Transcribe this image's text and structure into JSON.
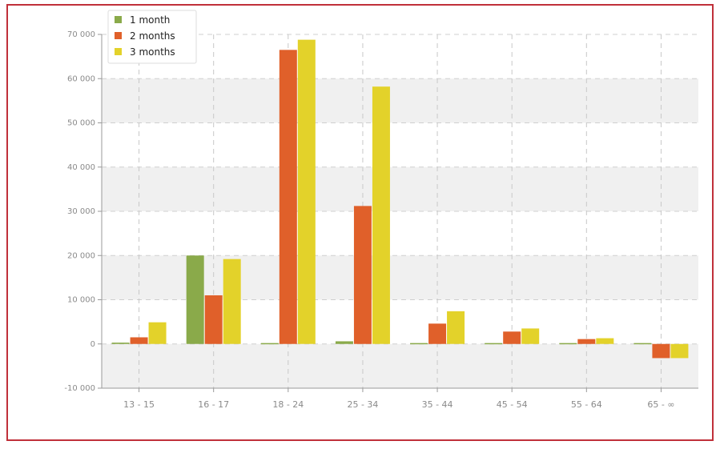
{
  "chart_data": {
    "type": "bar",
    "categories": [
      "13 - 15",
      "16 - 17",
      "18 - 24",
      "25 - 34",
      "35 - 44",
      "45 - 54",
      "55 - 64",
      "65 - ∞"
    ],
    "series": [
      {
        "name": "1 month",
        "color": "#8aaa4a",
        "values": [
          300,
          20000,
          200,
          600,
          200,
          200,
          200,
          200
        ]
      },
      {
        "name": "2 months",
        "color": "#e0602a",
        "values": [
          1500,
          11000,
          66500,
          31200,
          4600,
          2800,
          1100,
          -3200
        ]
      },
      {
        "name": "3 months",
        "color": "#e3d22a",
        "values": [
          4900,
          19200,
          68800,
          58200,
          7400,
          3500,
          1300,
          -3200
        ]
      }
    ],
    "yticks": [
      {
        "value": 70000,
        "label": "70 000"
      },
      {
        "value": 60000,
        "label": "60 000"
      },
      {
        "value": 50000,
        "label": "50 000"
      },
      {
        "value": 40000,
        "label": "40 000"
      },
      {
        "value": 30000,
        "label": "30 000"
      },
      {
        "value": 20000,
        "label": "20 000"
      },
      {
        "value": 10000,
        "label": "10 000"
      },
      {
        "value": 0,
        "label": "0"
      },
      {
        "value": -10000,
        "label": "-10 000"
      }
    ],
    "ylim": [
      -10000,
      70000
    ],
    "title": "",
    "xlabel": "",
    "ylabel": "",
    "grid": true,
    "legend_position": "top-left"
  }
}
